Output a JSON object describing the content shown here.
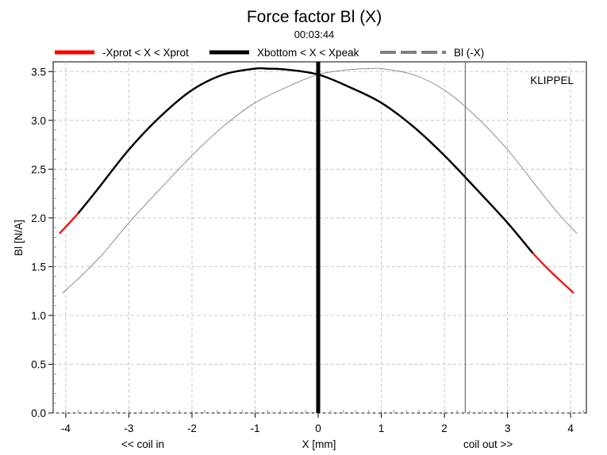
{
  "chart_data": {
    "type": "line",
    "title": "Force factor Bl (X)",
    "subtitle": "00:03:44",
    "xlabel": "X [mm]",
    "ylabel": "Bl [N/A]",
    "x_annotation_left": "<< coil in",
    "x_annotation_right": "coil out >>",
    "watermark": "KLIPPEL",
    "xlim": [
      -4.2,
      4.25
    ],
    "ylim": [
      0,
      3.6
    ],
    "xticks": [
      "-4",
      "-3",
      "-2",
      "-1",
      "0",
      "1",
      "2",
      "3",
      "4"
    ],
    "yticks": [
      "0.0",
      "0.5",
      "1.0",
      "1.5",
      "2.0",
      "2.5",
      "3.0",
      "3.5"
    ],
    "grid": true,
    "legend_position": "top",
    "legend": [
      {
        "label": "-Xprot < X < Xprot",
        "color": "#ff0000",
        "style": "solid"
      },
      {
        "label": "Xbottom < X < Xpeak",
        "color": "#000000",
        "style": "solid"
      },
      {
        "label": "Bl (-X)",
        "color": "#808080",
        "style": "dashed"
      }
    ],
    "vertical_markers": [
      {
        "x": 0.0,
        "color": "#000000",
        "style": "thick"
      },
      {
        "x": 2.33,
        "color": "#555555",
        "style": "thin"
      }
    ],
    "series": [
      {
        "name": "Bl (X)",
        "color": "#ff0000",
        "x": [
          -4.1,
          -3.8,
          -3.5,
          -3.0,
          -2.5,
          -2.0,
          -1.5,
          -1.0,
          -0.8,
          -0.5,
          0.0,
          0.5,
          1.0,
          1.5,
          2.0,
          2.5,
          3.0,
          3.4,
          3.7,
          4.05
        ],
        "y": [
          1.84,
          2.05,
          2.29,
          2.7,
          3.04,
          3.31,
          3.47,
          3.53,
          3.53,
          3.52,
          3.47,
          3.34,
          3.18,
          2.94,
          2.64,
          2.3,
          1.95,
          1.64,
          1.44,
          1.23
        ]
      },
      {
        "name": "Xbottom < X < Xpeak",
        "color": "#000000",
        "x": [
          -3.8,
          -3.5,
          -3.0,
          -2.5,
          -2.0,
          -1.5,
          -1.0,
          -0.8,
          -0.5,
          0.0,
          0.5,
          1.0,
          1.5,
          2.0,
          2.5,
          3.0,
          3.4
        ],
        "y": [
          2.05,
          2.29,
          2.7,
          3.04,
          3.31,
          3.47,
          3.53,
          3.53,
          3.52,
          3.47,
          3.34,
          3.18,
          2.94,
          2.64,
          2.3,
          1.95,
          1.64
        ]
      },
      {
        "name": "Bl (-X)",
        "color": "#808080",
        "x": [
          -4.05,
          -3.7,
          -3.4,
          -3.0,
          -2.5,
          -2.0,
          -1.5,
          -1.0,
          -0.5,
          0.0,
          0.5,
          0.8,
          1.0,
          1.5,
          2.0,
          2.5,
          3.0,
          3.5,
          3.8,
          4.1
        ],
        "y": [
          1.23,
          1.44,
          1.64,
          1.95,
          2.3,
          2.64,
          2.94,
          3.18,
          3.34,
          3.47,
          3.52,
          3.53,
          3.53,
          3.47,
          3.31,
          3.04,
          2.7,
          2.29,
          2.05,
          1.84
        ]
      }
    ]
  }
}
